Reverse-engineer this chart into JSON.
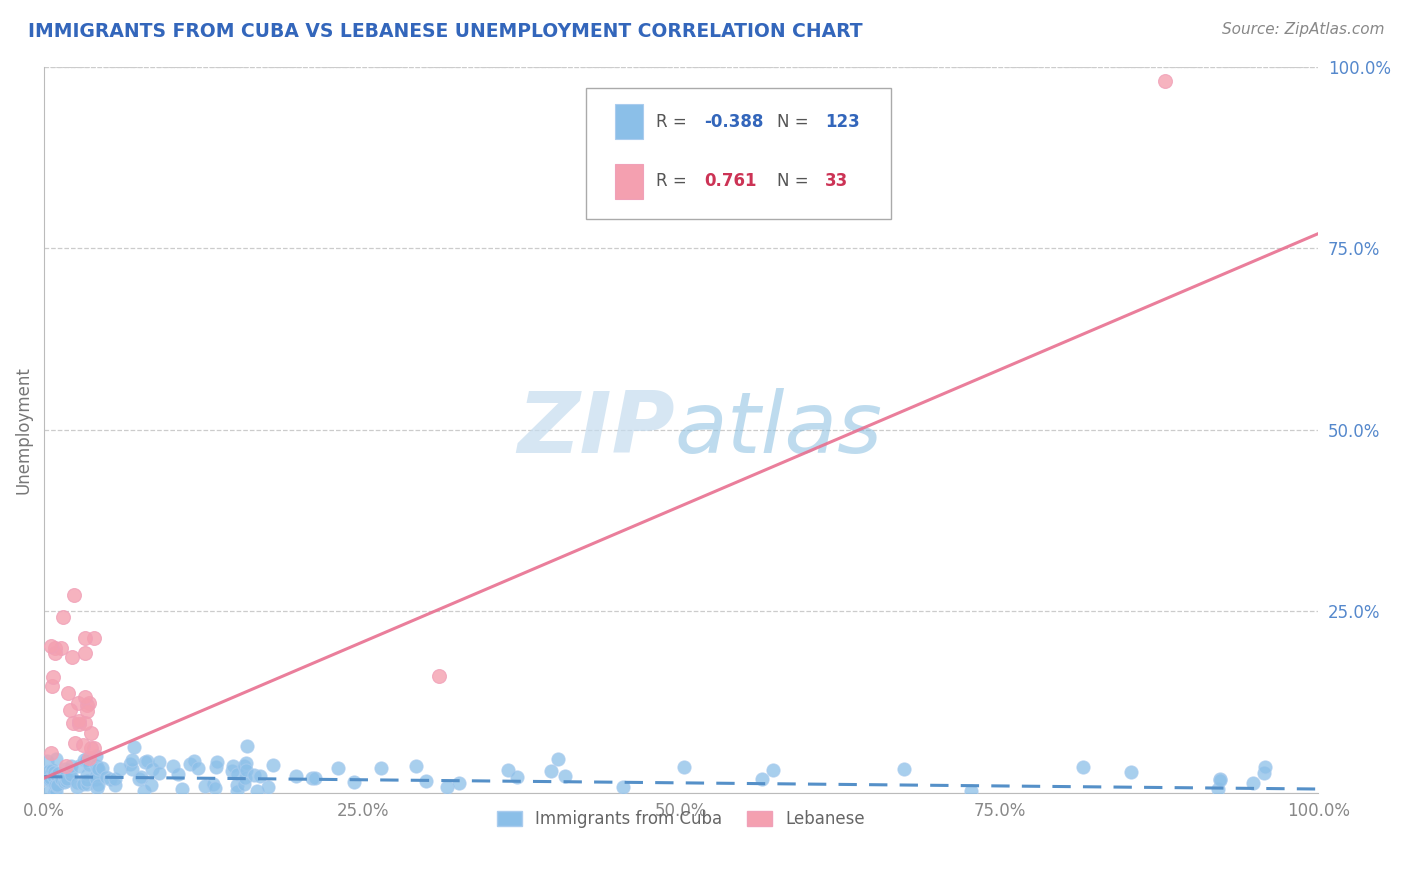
{
  "title": "IMMIGRANTS FROM CUBA VS LEBANESE UNEMPLOYMENT CORRELATION CHART",
  "source": "Source: ZipAtlas.com",
  "ylabel": "Unemployment",
  "blue_R": -0.388,
  "blue_N": 123,
  "pink_R": 0.761,
  "pink_N": 33,
  "blue_color": "#8BBFE8",
  "pink_color": "#F4A0B0",
  "blue_line_color": "#5590C8",
  "pink_line_color": "#E87090",
  "title_color": "#3366BB",
  "source_color": "#888888",
  "ytick_color": "#5588CC",
  "xtick_color": "#888888",
  "legend_blue_R_color": "#3366BB",
  "legend_pink_R_color": "#CC3355",
  "xlim": [
    0.0,
    1.0
  ],
  "ylim": [
    0.0,
    1.0
  ],
  "xtick_vals": [
    0.0,
    0.25,
    0.5,
    0.75,
    1.0
  ],
  "xtick_labels": [
    "0.0%",
    "25.0%",
    "50.0%",
    "75.0%",
    "100.0%"
  ],
  "ytick_vals": [
    0.25,
    0.5,
    0.75,
    1.0
  ],
  "ytick_labels": [
    "25.0%",
    "50.0%",
    "75.0%",
    "100.0%"
  ],
  "watermark_ZIP": "ZIP",
  "watermark_atlas": "atlas",
  "blue_trend": [
    0.0,
    0.022,
    1.0,
    0.005
  ],
  "pink_trend": [
    0.0,
    0.02,
    1.0,
    0.77
  ]
}
